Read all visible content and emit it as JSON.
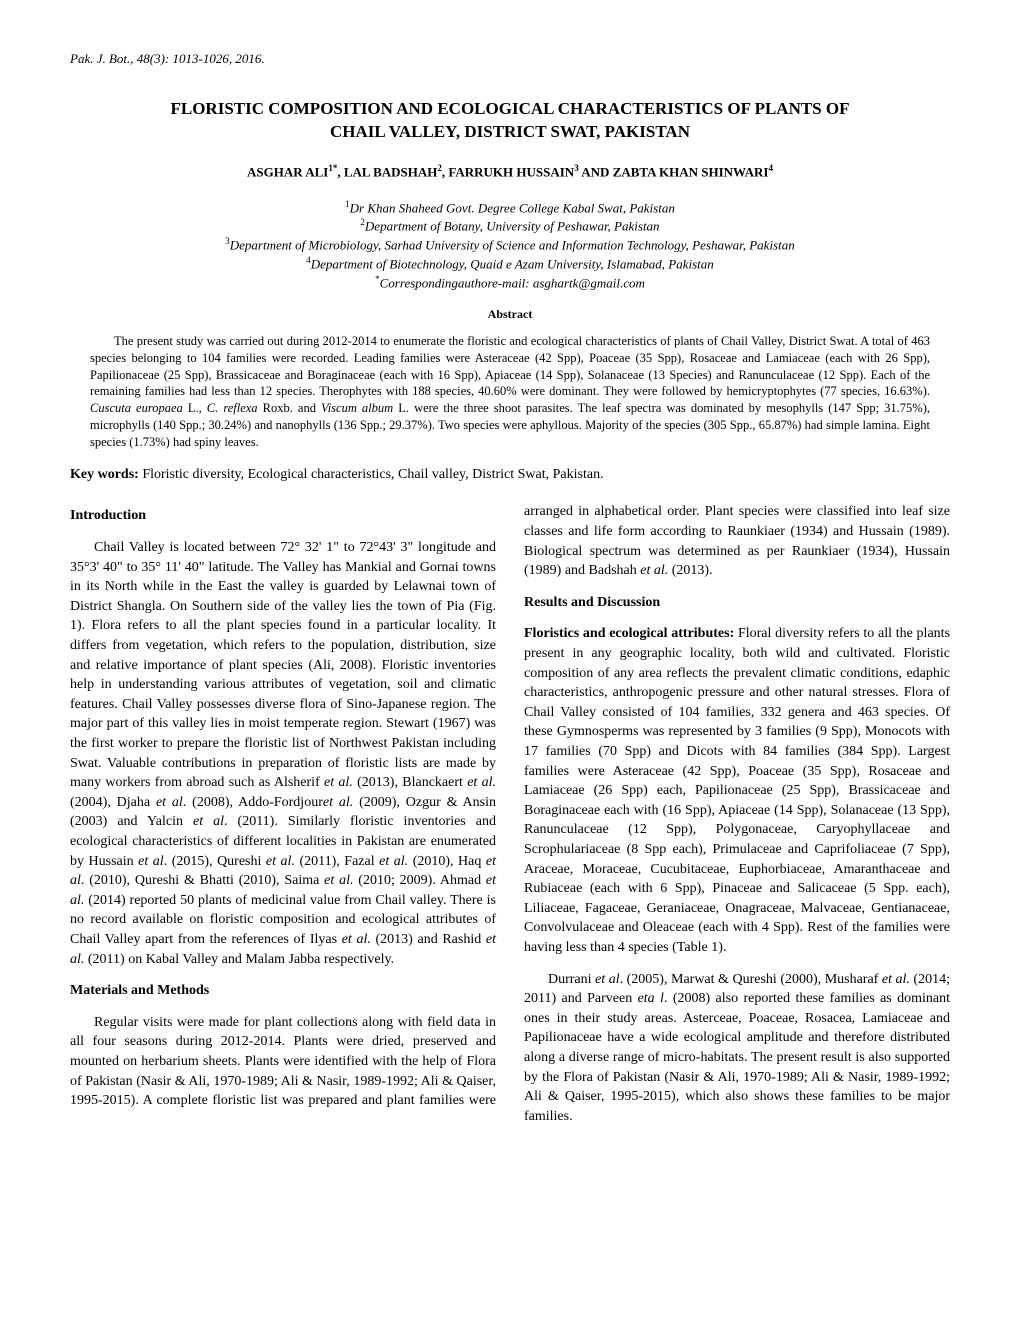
{
  "journal_line": "Pak. J. Bot., 48(3): 1013-1026, 2016.",
  "title": "FLORISTIC COMPOSITION AND ECOLOGICAL CHARACTERISTICS OF PLANTS OF CHAIL VALLEY, DISTRICT SWAT, PAKISTAN",
  "authors_html": "ASGHAR ALI<sup>1*</sup>, LAL BADSHAH<sup>2</sup>, FARRUKH HUSSAIN<sup>3</sup> AND ZABTA KHAN SHINWARI<sup>4</sup>",
  "affiliations_html": "<sup>1</sup>Dr Khan Shaheed Govt. Degree College Kabal Swat, Pakistan<br><sup>2</sup>Department of Botany, University of Peshawar, Pakistan<br><sup>3</sup>Department of Microbiology, Sarhad University of Science and Information Technology, Peshawar, Pakistan<br><sup>4</sup>Department of Biotechnology, Quaid e Azam University, Islamabad, Pakistan<br><sup>*</sup>Correspondingauthore-mail: asghartk@gmail.com",
  "abstract_label": "Abstract",
  "abstract_body": "The present study was carried out during 2012-2014 to enumerate the floristic and ecological characteristics of plants of Chail Valley, District Swat. A total of 463 species belonging to 104 families were recorded. Leading families were Asteraceae (42 Spp), Poaceae (35 Spp), Rosaceae and Lamiaceae (each with 26 Spp), Papilionaceae (25 Spp), Brassicaceae and Boraginaceae (each with 16 Spp), Apiaceae (14 Spp), Solanaceae (13 Species) and Ranunculaceae (12 Spp). Each of the remaining families had less than 12 species. Therophytes with 188 species, 40.60% were dominant. They were followed by hemicryptophytes (77 species, 16.63%). <i>Cuscuta europaea</i> L., <i>C. reflexa</i> Roxb. and <i>Viscum album</i> L. were the three shoot parasites. The leaf spectra was dominated by mesophylls (147 Spp; 31.75%), microphylls (140 Spp.; 30.24%) and nanophylls (136 Spp.; 29.37%). Two species were aphyllous. Majority of the species (305 Spp., 65.87%) had simple lamina. Eight species (1.73%) had spiny leaves.",
  "keywords_label": "Key words:",
  "keywords_text": " Floristic diversity, Ecological characteristics, Chail valley, District Swat, Pakistan.",
  "section_intro": "Introduction",
  "intro_p1": "Chail Valley is located between 72° 32' 1\" to 72°43' 3\" longitude and 35°3' 40\" to 35° 11' 40\" latitude. The Valley has Mankial and Gornai towns in its North while in the East the valley is guarded by Lelawnai town of District Shangla. On Southern side of the valley lies the town of Pia (Fig. 1). Flora refers to all the plant species found in a particular locality. It differs from vegetation, which refers to the population, distribution, size and relative importance of plant species (Ali, 2008). Floristic inventories help in understanding various attributes of vegetation, soil and climatic features. Chail Valley possesses diverse flora of Sino-Japanese region. The major part of this valley lies in moist temperate region. Stewart (1967) was the first worker to prepare the floristic list of Northwest Pakistan including Swat. Valuable contributions in preparation of floristic lists are made by many workers from abroad such as Alsherif <i>et al.</i> (2013), Blanckaert <i>et al.</i> (2004), Djaha <i>et al</i>. (2008), Addo-Fordjour<i>et al.</i> (2009), Ozgur & Ansin (2003) and Yalcin <i>et al</i>. (2011). Similarly floristic inventories and ecological characteristics of different localities in Pakistan are enumerated by Hussain <i>et al</i>. (2015), Qureshi <i>et al.</i> (2011), Fazal <i>et al.</i> (2010), Haq <i>et al</i>. (2010), Qureshi & Bhatti (2010), Saima <i>et al.</i> (2010; 2009). Ahmad <i>et al.</i> (2014) reported 50 plants of medicinal value from Chail valley. There is no record available on floristic composition and ecological attributes of Chail Valley apart from the references of Ilyas <i>et al.</i> (2013) and Rashid <i>et al.</i> (2011) on Kabal Valley and Malam Jabba respectively.",
  "section_methods": "Materials and Methods",
  "methods_p1": "Regular visits were made for plant collections along with field data in all four seasons during 2012-2014. Plants were dried, preserved and mounted on herbarium sheets. Plants were identified with the help of Flora of Pakistan (Nasir & Ali, 1970-1989; Ali & Nasir, 1989-1992; Ali & Qaiser, 1995-2015). A complete floristic list was prepared and plant families were arranged in alphabetical order. Plant species were classified into leaf size classes and life form according to Raunkiaer (1934) and Hussain (1989). Biological spectrum was determined as per Raunkiaer (1934), Hussain (1989) and Badshah <i>et al.</i> (2013).",
  "section_results": "Results and Discussion",
  "results_runin": "Floristics and ecological attributes:",
  "results_p1": " Floral diversity refers to all the plants present in any geographic locality, both wild and cultivated. Floristic composition of any area reflects the prevalent climatic conditions, edaphic characteristics, anthropogenic pressure and other natural stresses. Flora of Chail Valley consisted of 104 families, 332 genera and 463 species. Of these Gymnosperms was represented by 3 families (9 Spp), Monocots with 17 families (70 Spp) and Dicots with 84 families (384 Spp). Largest families were Asteraceae (42 Spp), Poaceae (35 Spp), Rosaceae and Lamiaceae (26 Spp) each, Papilionaceae (25 Spp), Brassicaceae and Boraginaceae each with (16 Spp), Apiaceae (14 Spp), Solanaceae (13 Spp), Ranunculaceae (12 Spp), Polygonaceae, Caryophyllaceae and Scrophulariaceae (8 Spp each), Primulaceae and Caprifoliaceae (7 Spp), Araceae, Moraceae, Cucubitaceae, Euphorbiaceae, Amaranthaceae and Rubiaceae (each with 6 Spp), Pinaceae and Salicaceae (5 Spp. each), Liliaceae, Fagaceae, Geraniaceae, Onagraceae, Malvaceae, Gentianaceae, Convolvulaceae and Oleaceae (each with 4 Spp). Rest of the families were having less than 4 species (Table 1).",
  "results_p2": "Durrani <i>et al</i>. (2005), Marwat & Qureshi (2000), Musharaf <i>et al.</i> (2014; 2011) and Parveen <i>eta l</i>. (2008) also reported these families as dominant ones in their study areas. Asterceae, Poaceae, Rosacea, Lamiaceae and Papilionaceae have a wide ecological amplitude and therefore distributed along a diverse range of micro-habitats. The present result is also supported by the Flora of Pakistan (Nasir & Ali, 1970-1989; Ali & Nasir, 1989-1992; Ali & Qaiser, 1995-2015), which also shows these families to be major families."
}
